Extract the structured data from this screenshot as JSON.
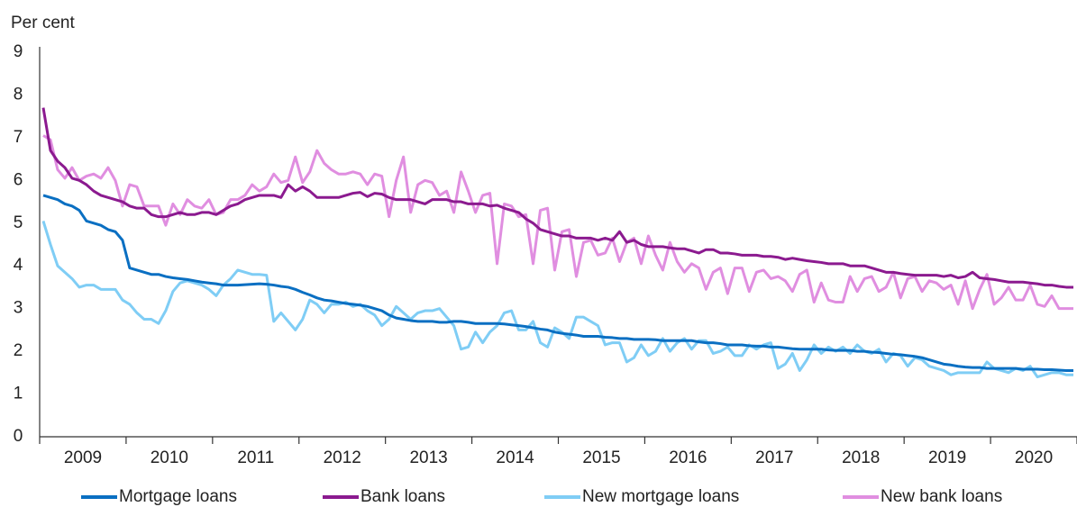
{
  "chart_data": {
    "type": "line",
    "y_label": "Per cent",
    "categories": [
      null,
      null,
      null,
      null,
      null,
      null,
      "2009",
      null,
      null,
      null,
      null,
      null,
      null,
      null,
      null,
      null,
      null,
      null,
      "2010",
      null,
      null,
      null,
      null,
      null,
      null,
      null,
      null,
      null,
      null,
      null,
      "2011",
      null,
      null,
      null,
      null,
      null,
      null,
      null,
      null,
      null,
      null,
      null,
      "2012",
      null,
      null,
      null,
      null,
      null,
      null,
      null,
      null,
      null,
      null,
      null,
      "2013",
      null,
      null,
      null,
      null,
      null,
      null,
      null,
      null,
      null,
      null,
      null,
      "2014",
      null,
      null,
      null,
      null,
      null,
      null,
      null,
      null,
      null,
      null,
      null,
      "2015",
      null,
      null,
      null,
      null,
      null,
      null,
      null,
      null,
      null,
      null,
      null,
      "2016",
      null,
      null,
      null,
      null,
      null,
      null,
      null,
      null,
      null,
      null,
      null,
      "2017",
      null,
      null,
      null,
      null,
      null,
      null,
      null,
      null,
      null,
      null,
      null,
      "2018",
      null,
      null,
      null,
      null,
      null,
      null,
      null,
      null,
      null,
      null,
      null,
      "2019",
      null,
      null,
      null,
      null,
      null,
      null,
      null,
      null,
      null,
      null,
      null,
      "2020",
      null,
      null,
      null,
      null,
      null
    ],
    "ylim": [
      0,
      9
    ],
    "yticks": [
      0,
      1,
      2,
      3,
      4,
      5,
      6,
      7,
      8,
      9
    ],
    "grid": false,
    "legend": "bottom",
    "series": [
      {
        "name": "Mortgage loans",
        "color": "#0a6fc2",
        "values": [
          5.65,
          5.6,
          5.55,
          5.45,
          5.4,
          5.3,
          5.05,
          5.0,
          4.95,
          4.85,
          4.8,
          4.6,
          3.95,
          3.9,
          3.85,
          3.8,
          3.8,
          3.75,
          3.72,
          3.7,
          3.68,
          3.65,
          3.62,
          3.6,
          3.58,
          3.55,
          3.55,
          3.55,
          3.56,
          3.57,
          3.58,
          3.57,
          3.55,
          3.52,
          3.5,
          3.45,
          3.38,
          3.32,
          3.25,
          3.2,
          3.18,
          3.15,
          3.12,
          3.1,
          3.08,
          3.05,
          3.0,
          2.95,
          2.85,
          2.78,
          2.75,
          2.72,
          2.7,
          2.7,
          2.7,
          2.68,
          2.68,
          2.7,
          2.7,
          2.68,
          2.65,
          2.65,
          2.65,
          2.65,
          2.64,
          2.62,
          2.6,
          2.58,
          2.55,
          2.52,
          2.5,
          2.45,
          2.42,
          2.4,
          2.38,
          2.35,
          2.35,
          2.35,
          2.33,
          2.32,
          2.3,
          2.3,
          2.28,
          2.28,
          2.28,
          2.27,
          2.25,
          2.25,
          2.25,
          2.25,
          2.25,
          2.22,
          2.2,
          2.2,
          2.18,
          2.15,
          2.15,
          2.15,
          2.13,
          2.12,
          2.12,
          2.1,
          2.1,
          2.08,
          2.06,
          2.05,
          2.05,
          2.05,
          2.05,
          2.03,
          2.02,
          2.02,
          2.02,
          2.0,
          2.0,
          1.98,
          1.97,
          1.95,
          1.93,
          1.92,
          1.9,
          1.88,
          1.85,
          1.8,
          1.75,
          1.7,
          1.68,
          1.65,
          1.63,
          1.62,
          1.62,
          1.6,
          1.6,
          1.6,
          1.6,
          1.6,
          1.58,
          1.58,
          1.58,
          1.57,
          1.57,
          1.56,
          1.55,
          1.55
        ]
      },
      {
        "name": "Bank loans",
        "color": "#8b1a8f",
        "values": [
          7.7,
          6.7,
          6.45,
          6.3,
          6.05,
          6.0,
          5.9,
          5.75,
          5.65,
          5.6,
          5.55,
          5.5,
          5.4,
          5.35,
          5.35,
          5.2,
          5.15,
          5.15,
          5.2,
          5.25,
          5.2,
          5.2,
          5.25,
          5.25,
          5.2,
          5.3,
          5.4,
          5.45,
          5.55,
          5.6,
          5.65,
          5.65,
          5.65,
          5.6,
          5.9,
          5.75,
          5.85,
          5.75,
          5.6,
          5.6,
          5.6,
          5.6,
          5.65,
          5.7,
          5.72,
          5.62,
          5.7,
          5.68,
          5.6,
          5.55,
          5.55,
          5.55,
          5.5,
          5.45,
          5.55,
          5.55,
          5.55,
          5.5,
          5.5,
          5.45,
          5.45,
          5.45,
          5.4,
          5.42,
          5.35,
          5.3,
          5.25,
          5.1,
          5.0,
          4.85,
          4.8,
          4.75,
          4.7,
          4.7,
          4.65,
          4.65,
          4.65,
          4.6,
          4.65,
          4.6,
          4.8,
          4.55,
          4.6,
          4.5,
          4.45,
          4.45,
          4.45,
          4.42,
          4.4,
          4.4,
          4.35,
          4.3,
          4.38,
          4.38,
          4.3,
          4.3,
          4.28,
          4.25,
          4.25,
          4.25,
          4.22,
          4.22,
          4.2,
          4.15,
          4.18,
          4.15,
          4.12,
          4.1,
          4.08,
          4.05,
          4.05,
          4.05,
          4.0,
          4.0,
          4.0,
          3.95,
          3.9,
          3.85,
          3.85,
          3.82,
          3.8,
          3.78,
          3.78,
          3.78,
          3.78,
          3.75,
          3.78,
          3.72,
          3.75,
          3.85,
          3.72,
          3.7,
          3.68,
          3.65,
          3.62,
          3.62,
          3.62,
          3.6,
          3.58,
          3.55,
          3.55,
          3.52,
          3.5,
          3.5
        ]
      },
      {
        "name": "New mortgage loans",
        "color": "#7fcdf5",
        "values": [
          5.05,
          4.5,
          4.0,
          3.85,
          3.7,
          3.5,
          3.55,
          3.55,
          3.45,
          3.45,
          3.45,
          3.2,
          3.1,
          2.9,
          2.75,
          2.75,
          2.65,
          2.95,
          3.4,
          3.6,
          3.65,
          3.6,
          3.55,
          3.45,
          3.3,
          3.55,
          3.7,
          3.9,
          3.85,
          3.8,
          3.8,
          3.78,
          2.7,
          2.9,
          2.7,
          2.5,
          2.75,
          3.2,
          3.1,
          2.9,
          3.1,
          3.1,
          3.15,
          3.05,
          3.1,
          2.95,
          2.85,
          2.6,
          2.75,
          3.05,
          2.9,
          2.75,
          2.9,
          2.95,
          2.95,
          3.0,
          2.8,
          2.6,
          2.05,
          2.1,
          2.45,
          2.2,
          2.45,
          2.6,
          2.9,
          2.95,
          2.5,
          2.5,
          2.7,
          2.2,
          2.1,
          2.55,
          2.45,
          2.3,
          2.8,
          2.8,
          2.7,
          2.6,
          2.15,
          2.2,
          2.2,
          1.75,
          1.85,
          2.15,
          1.9,
          2.0,
          2.3,
          2.0,
          2.2,
          2.3,
          2.05,
          2.25,
          2.25,
          1.95,
          2.0,
          2.1,
          1.9,
          1.9,
          2.15,
          2.05,
          2.15,
          2.2,
          1.6,
          1.7,
          1.95,
          1.55,
          1.8,
          2.15,
          1.95,
          2.1,
          2.0,
          2.1,
          1.95,
          2.15,
          2.0,
          1.95,
          2.05,
          1.75,
          1.95,
          1.9,
          1.65,
          1.85,
          1.8,
          1.65,
          1.6,
          1.55,
          1.45,
          1.5,
          1.5,
          1.5,
          1.5,
          1.75,
          1.6,
          1.55,
          1.5,
          1.6,
          1.55,
          1.65,
          1.4,
          1.45,
          1.5,
          1.5,
          1.45,
          1.45
        ]
      },
      {
        "name": "New bank loans",
        "color": "#e08ee0",
        "values": [
          7.05,
          6.95,
          6.25,
          6.05,
          6.3,
          6.0,
          6.1,
          6.15,
          6.05,
          6.3,
          6.0,
          5.4,
          5.9,
          5.85,
          5.4,
          5.4,
          5.4,
          4.95,
          5.45,
          5.2,
          5.55,
          5.4,
          5.35,
          5.55,
          5.2,
          5.25,
          5.55,
          5.55,
          5.65,
          5.9,
          5.75,
          5.85,
          6.15,
          5.95,
          6.0,
          6.55,
          5.95,
          6.2,
          6.7,
          6.4,
          6.25,
          6.15,
          6.15,
          6.2,
          6.15,
          5.9,
          6.15,
          6.1,
          5.15,
          6.0,
          6.55,
          5.25,
          5.9,
          6.0,
          5.95,
          5.65,
          5.75,
          5.25,
          6.2,
          5.75,
          5.25,
          5.65,
          5.7,
          4.05,
          5.45,
          5.4,
          5.15,
          5.2,
          4.05,
          5.3,
          5.35,
          3.9,
          4.8,
          4.85,
          3.75,
          4.55,
          4.6,
          4.25,
          4.3,
          4.65,
          4.1,
          4.55,
          4.65,
          4.05,
          4.7,
          4.25,
          3.9,
          4.55,
          4.1,
          3.85,
          4.05,
          3.95,
          3.45,
          3.85,
          3.95,
          3.35,
          3.95,
          3.95,
          3.4,
          3.85,
          3.9,
          3.7,
          3.75,
          3.65,
          3.4,
          3.8,
          3.9,
          3.15,
          3.6,
          3.2,
          3.15,
          3.15,
          3.75,
          3.4,
          3.7,
          3.75,
          3.4,
          3.5,
          3.85,
          3.25,
          3.7,
          3.75,
          3.4,
          3.65,
          3.6,
          3.45,
          3.55,
          3.1,
          3.65,
          3.0,
          3.45,
          3.8,
          3.1,
          3.25,
          3.5,
          3.2,
          3.2,
          3.55,
          3.1,
          3.05,
          3.3,
          3.0,
          3.0,
          3.0
        ]
      }
    ]
  }
}
